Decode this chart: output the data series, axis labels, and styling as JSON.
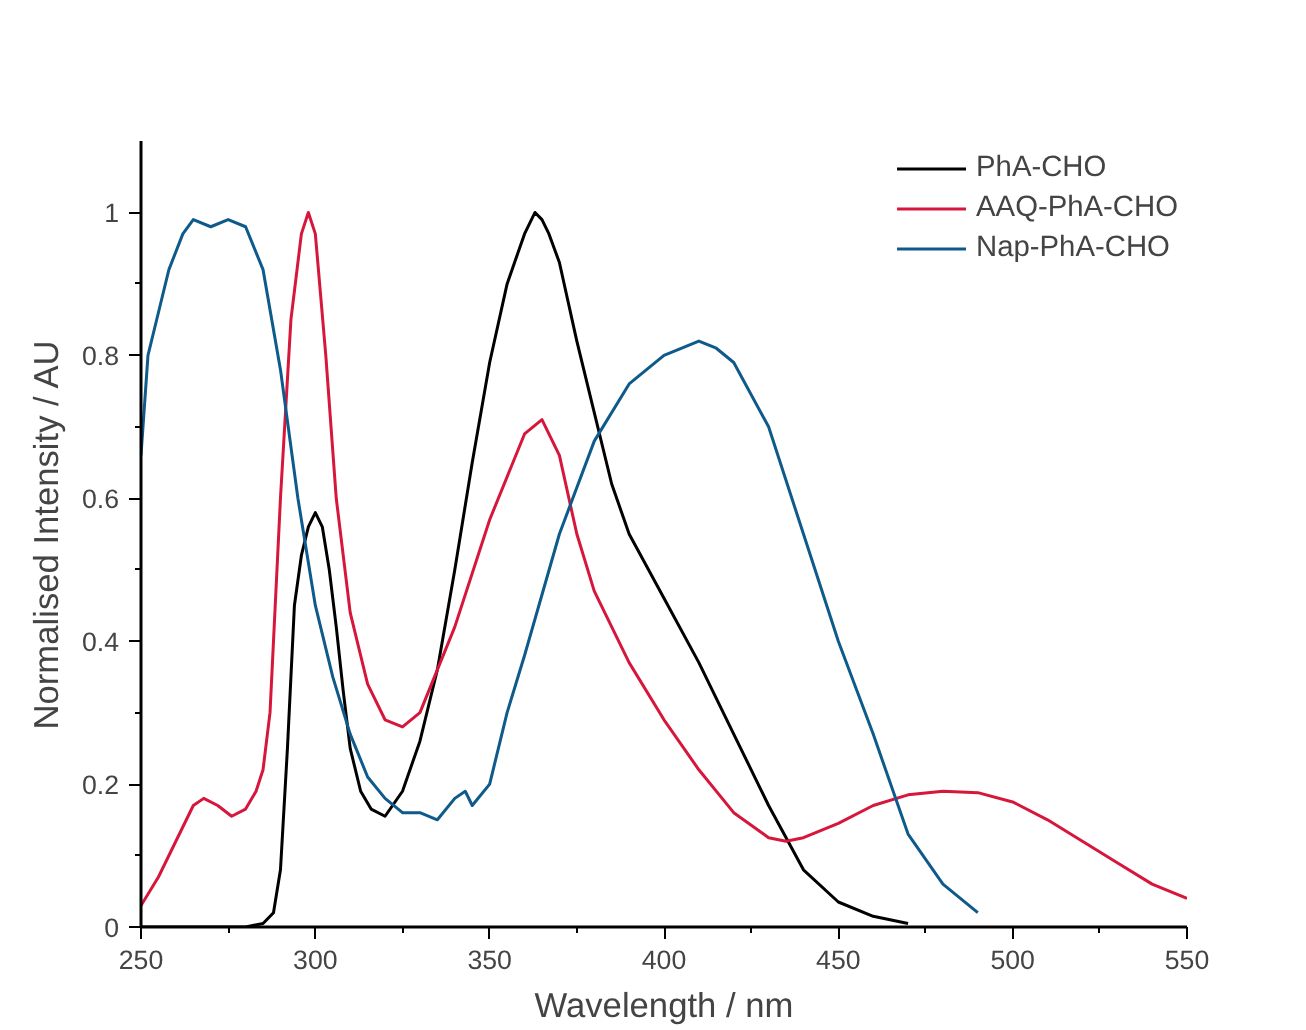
{
  "chart_data": {
    "type": "line",
    "xlabel": "Wavelength / nm",
    "ylabel": "Normalised Intensity / AU",
    "xlim": [
      250,
      550
    ],
    "ylim": [
      0,
      1.1
    ],
    "xticks": [
      250,
      300,
      350,
      400,
      450,
      500,
      550
    ],
    "yticks": [
      0,
      0.2,
      0.4,
      0.6,
      0.8,
      1
    ],
    "grid": false,
    "legend": "top right",
    "line_style": "solid",
    "marker": "none",
    "series": [
      {
        "name": "PhA-CHO",
        "color": "#000000",
        "x": [
          250,
          260,
          270,
          280,
          285,
          288,
          290,
          292,
          294,
          296,
          298,
          300,
          302,
          304,
          306,
          308,
          310,
          313,
          316,
          320,
          325,
          330,
          335,
          340,
          345,
          350,
          355,
          360,
          363,
          365,
          367,
          370,
          375,
          380,
          385,
          390,
          400,
          410,
          420,
          430,
          440,
          450,
          460,
          470
        ],
        "values": [
          0,
          0,
          0,
          0,
          0.005,
          0.02,
          0.08,
          0.25,
          0.45,
          0.52,
          0.56,
          0.58,
          0.56,
          0.5,
          0.42,
          0.33,
          0.25,
          0.19,
          0.165,
          0.155,
          0.19,
          0.26,
          0.36,
          0.5,
          0.65,
          0.79,
          0.9,
          0.97,
          1.0,
          0.99,
          0.97,
          0.93,
          0.82,
          0.72,
          0.62,
          0.55,
          0.46,
          0.37,
          0.27,
          0.17,
          0.08,
          0.035,
          0.015,
          0.005
        ]
      },
      {
        "name": "AAQ-PhA-CHO",
        "color": "#d6173b",
        "x": [
          250,
          255,
          260,
          265,
          268,
          272,
          276,
          280,
          283,
          285,
          287,
          288,
          290,
          293,
          296,
          298,
          300,
          303,
          306,
          310,
          315,
          320,
          325,
          330,
          340,
          350,
          360,
          365,
          370,
          375,
          380,
          390,
          400,
          410,
          420,
          430,
          435,
          440,
          450,
          460,
          470,
          480,
          490,
          500,
          510,
          520,
          530,
          540,
          550
        ],
        "values": [
          0.03,
          0.07,
          0.12,
          0.17,
          0.18,
          0.17,
          0.155,
          0.165,
          0.19,
          0.22,
          0.3,
          0.4,
          0.6,
          0.85,
          0.97,
          1.0,
          0.97,
          0.8,
          0.6,
          0.44,
          0.34,
          0.29,
          0.28,
          0.3,
          0.42,
          0.57,
          0.69,
          0.71,
          0.66,
          0.55,
          0.47,
          0.37,
          0.29,
          0.22,
          0.16,
          0.125,
          0.12,
          0.125,
          0.145,
          0.17,
          0.185,
          0.19,
          0.188,
          0.175,
          0.15,
          0.12,
          0.09,
          0.06,
          0.04
        ]
      },
      {
        "name": "Nap-PhA-CHO",
        "color": "#0e5a8a",
        "x": [
          250,
          252,
          255,
          258,
          262,
          265,
          270,
          275,
          280,
          285,
          290,
          295,
          300,
          305,
          310,
          315,
          320,
          325,
          330,
          335,
          340,
          343,
          345,
          350,
          355,
          360,
          370,
          380,
          390,
          400,
          410,
          415,
          420,
          430,
          440,
          450,
          460,
          470,
          480,
          490
        ],
        "values": [
          0.66,
          0.8,
          0.86,
          0.92,
          0.97,
          0.99,
          0.98,
          0.99,
          0.98,
          0.92,
          0.78,
          0.6,
          0.45,
          0.35,
          0.27,
          0.21,
          0.18,
          0.16,
          0.16,
          0.15,
          0.18,
          0.19,
          0.17,
          0.2,
          0.3,
          0.38,
          0.55,
          0.68,
          0.76,
          0.8,
          0.82,
          0.81,
          0.79,
          0.7,
          0.55,
          0.4,
          0.27,
          0.13,
          0.06,
          0.02
        ]
      }
    ]
  }
}
